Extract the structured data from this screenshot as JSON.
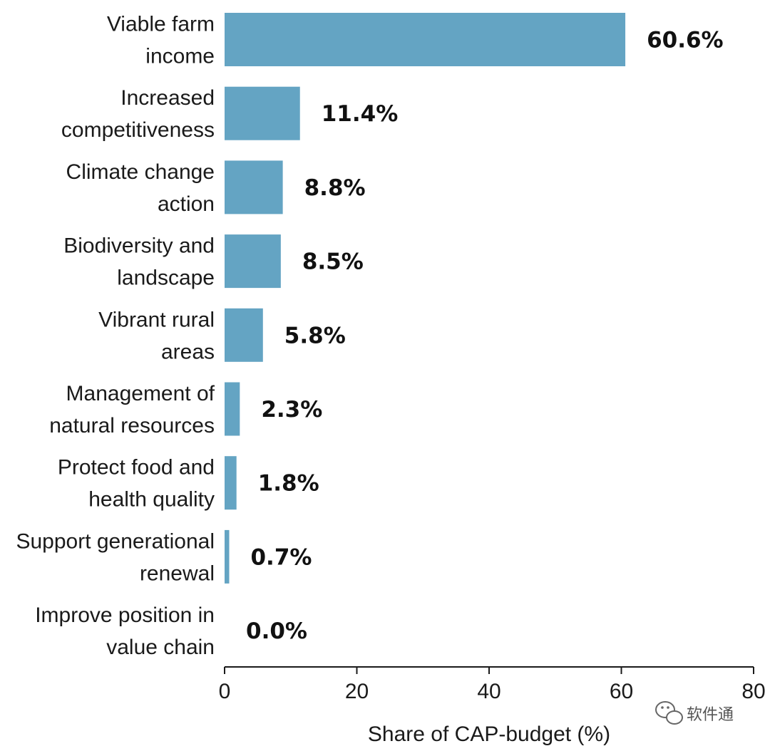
{
  "chart_data": {
    "type": "bar",
    "orientation": "horizontal",
    "categories": [
      [
        "Viable farm",
        "income"
      ],
      [
        "Increased",
        "competitiveness"
      ],
      [
        "Climate change",
        "action"
      ],
      [
        "Biodiversity and",
        "landscape"
      ],
      [
        "Vibrant rural",
        "areas"
      ],
      [
        "Management of",
        "natural resources"
      ],
      [
        "Protect food and",
        "health quality"
      ],
      [
        "Support generational",
        "renewal"
      ],
      [
        "Improve position in",
        "value chain"
      ]
    ],
    "values": [
      60.6,
      11.4,
      8.8,
      8.5,
      5.8,
      2.3,
      1.8,
      0.7,
      0.0
    ],
    "value_labels": [
      "60.6%",
      "11.4%",
      "8.8%",
      "8.5%",
      "5.8%",
      "2.3%",
      "1.8%",
      "0.7%",
      "0.0%"
    ],
    "xlim": [
      0,
      80
    ],
    "xticks": [
      0,
      20,
      40,
      60,
      80
    ],
    "xlabel": "Share of CAP-budget (%)",
    "bar_color": "#64a4c3",
    "grid": false
  },
  "watermark": {
    "text": "软件通",
    "icon": "wechat-icon"
  }
}
